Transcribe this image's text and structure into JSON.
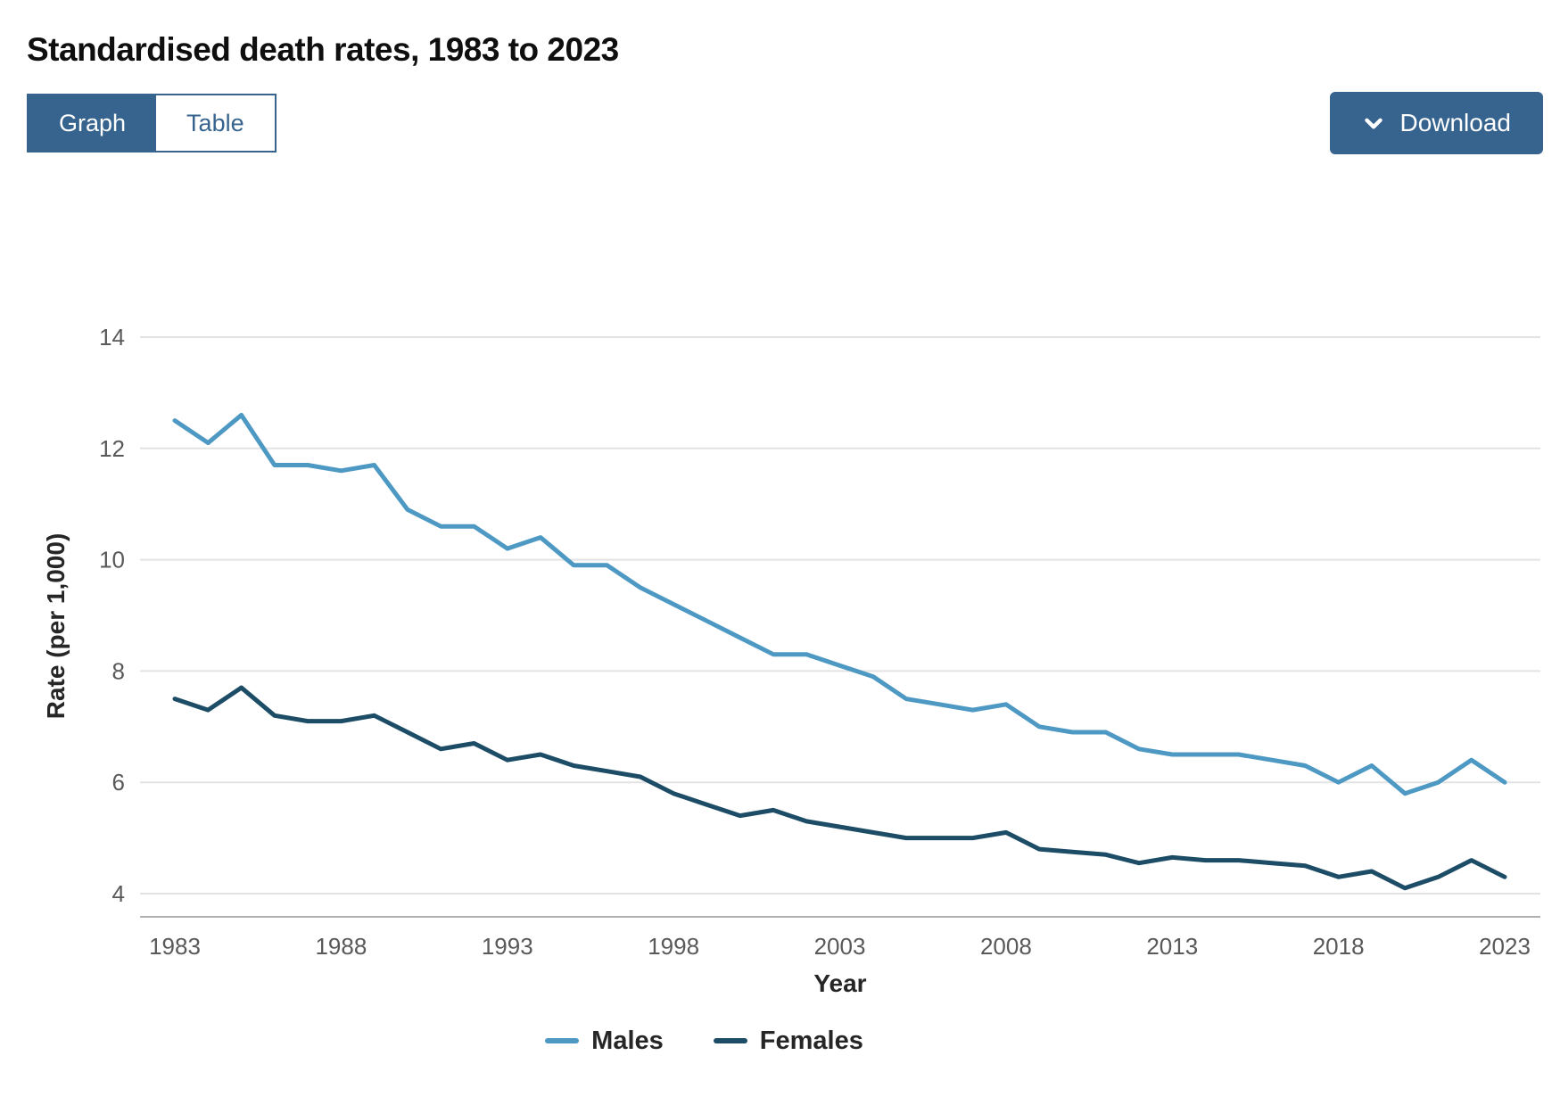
{
  "page": {
    "title": "Standardised death rates, 1983 to 2023"
  },
  "toolbar": {
    "view_toggle": [
      {
        "label": "Graph",
        "active": true
      },
      {
        "label": "Table",
        "active": false
      }
    ],
    "download_label": "Download",
    "download_icon": "chevron-down"
  },
  "colors": {
    "accent": "#36648e",
    "males_line": "#4d99c3",
    "females_line": "#1c4c66",
    "gridline": "#e3e3e3",
    "axis_line": "#b0b0b0",
    "tick_text": "#595959",
    "axis_title_text": "#262626"
  },
  "chart_data": {
    "type": "line",
    "title": "Standardised death rates, 1983 to 2023",
    "xlabel": "Year",
    "ylabel": "Rate (per 1,000)",
    "x": [
      1983,
      1984,
      1985,
      1986,
      1987,
      1988,
      1989,
      1990,
      1991,
      1992,
      1993,
      1994,
      1995,
      1996,
      1997,
      1998,
      1999,
      2000,
      2001,
      2002,
      2003,
      2004,
      2005,
      2006,
      2007,
      2008,
      2009,
      2010,
      2011,
      2012,
      2013,
      2014,
      2015,
      2016,
      2017,
      2018,
      2019,
      2020,
      2021,
      2022,
      2023
    ],
    "x_tick_labels": [
      "1983",
      "1988",
      "1993",
      "1998",
      "2003",
      "2008",
      "2013",
      "2018",
      "2023"
    ],
    "y_ticks": [
      "14",
      "12",
      "10",
      "8",
      "6",
      "4"
    ],
    "ylim": [
      3.6,
      14.4
    ],
    "xlim": [
      1983,
      2023
    ],
    "grid": true,
    "legend_position": "bottom",
    "series": [
      {
        "name": "Males",
        "values": [
          12.5,
          12.1,
          12.6,
          11.7,
          11.7,
          11.6,
          11.7,
          10.9,
          10.6,
          10.6,
          10.2,
          10.4,
          9.9,
          9.9,
          9.5,
          9.2,
          8.9,
          8.6,
          8.3,
          8.3,
          8.1,
          7.9,
          7.5,
          7.4,
          7.3,
          7.4,
          7.0,
          6.9,
          6.9,
          6.6,
          6.5,
          6.5,
          6.5,
          6.4,
          6.3,
          6.0,
          6.3,
          5.8,
          6.0,
          6.4,
          6.0
        ]
      },
      {
        "name": "Females",
        "values": [
          7.5,
          7.3,
          7.7,
          7.2,
          7.1,
          7.1,
          7.2,
          6.9,
          6.6,
          6.7,
          6.4,
          6.5,
          6.3,
          6.2,
          6.1,
          5.8,
          5.6,
          5.4,
          5.5,
          5.3,
          5.2,
          5.1,
          5.0,
          5.0,
          5.0,
          5.1,
          4.8,
          4.75,
          4.7,
          4.55,
          4.65,
          4.6,
          4.6,
          4.55,
          4.5,
          4.3,
          4.4,
          4.1,
          4.3,
          4.6,
          4.3
        ]
      }
    ]
  },
  "legend": {
    "items": [
      {
        "label": "Males"
      },
      {
        "label": "Females"
      }
    ]
  }
}
